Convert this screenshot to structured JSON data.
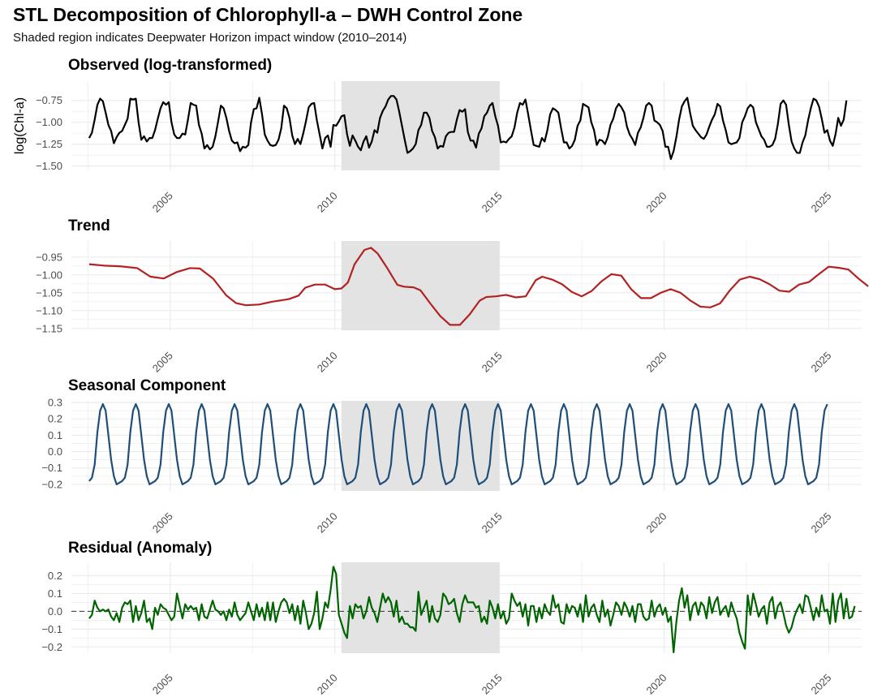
{
  "title": "STL Decomposition of Chlorophyll-a – DWH Control Zone",
  "subtitle": "Shaded region indicates Deepwater Horizon impact window (2010–2014)",
  "colors": {
    "observed": "#000000",
    "trend": "#b22222",
    "seasonal": "#1f4e79",
    "residual": "#006400",
    "shade": "#e3e3e3",
    "grid": "#ebebeb"
  },
  "chart_data": [
    {
      "type": "line",
      "panel": "observed",
      "title": "Observed (log-transformed)",
      "ylabel": "log(Chl-a)",
      "xlim": [
        2002.0,
        2026.0
      ],
      "xticks": [
        2005,
        2010,
        2015,
        2020,
        2025
      ],
      "ylim": [
        -1.55,
        -0.53
      ],
      "yticks": [
        -1.5,
        -1.25,
        -1.0,
        -0.75
      ],
      "ytick_labels": [
        "-1.50",
        "-1.25",
        "-1.00",
        "-0.75"
      ],
      "shade": [
        2010.2,
        2015.0
      ],
      "x_start": 2002.54,
      "x_step": 0.08333,
      "values": [
        -1.18,
        -1.12,
        -0.97,
        -0.8,
        -0.73,
        -0.76,
        -0.89,
        -1.03,
        -1.1,
        -1.24,
        -1.17,
        -1.12,
        -1.1,
        -1.03,
        -0.96,
        -0.73,
        -0.74,
        -0.73,
        -1.0,
        -1.2,
        -1.16,
        -1.22,
        -1.18,
        -1.18,
        -1.09,
        -0.96,
        -0.84,
        -0.77,
        -0.8,
        -0.77,
        -1.0,
        -1.14,
        -1.18,
        -1.18,
        -1.13,
        -1.14,
        -0.97,
        -0.78,
        -0.8,
        -0.81,
        -1.03,
        -1.13,
        -1.3,
        -1.26,
        -1.31,
        -1.28,
        -1.16,
        -0.99,
        -0.81,
        -0.84,
        -0.95,
        -1.1,
        -1.21,
        -1.24,
        -1.23,
        -1.33,
        -1.28,
        -1.29,
        -1.26,
        -1.0,
        -0.85,
        -0.84,
        -0.72,
        -0.91,
        -1.14,
        -1.21,
        -1.26,
        -1.27,
        -1.26,
        -1.2,
        -1.07,
        -0.81,
        -0.84,
        -0.95,
        -1.15,
        -1.25,
        -1.19,
        -1.25,
        -1.13,
        -0.99,
        -0.83,
        -0.79,
        -0.78,
        -0.98,
        -1.14,
        -1.3,
        -1.18,
        -1.15,
        -1.28,
        -1.03,
        -1.04,
        -0.99,
        -0.93,
        -0.92,
        -1.14,
        -1.27,
        -1.15,
        -1.21,
        -1.28,
        -1.32,
        -1.22,
        -1.16,
        -1.29,
        -1.22,
        -1.09,
        -1.12,
        -0.95,
        -0.87,
        -0.82,
        -0.74,
        -0.7,
        -0.7,
        -0.74,
        -0.88,
        -1.04,
        -1.2,
        -1.35,
        -1.33,
        -1.3,
        -1.25,
        -1.09,
        -1.03,
        -0.89,
        -0.89,
        -0.95,
        -1.1,
        -1.17,
        -1.3,
        -1.27,
        -1.28,
        -1.16,
        -1.12,
        -1.11,
        -1.11,
        -0.97,
        -0.86,
        -0.88,
        -0.85,
        -1.11,
        -1.21,
        -1.21,
        -1.29,
        -1.13,
        -1.07,
        -0.93,
        -0.89,
        -0.81,
        -0.78,
        -0.93,
        -1.04,
        -1.23,
        -1.22,
        -1.23,
        -1.19,
        -1.16,
        -1.06,
        -0.89,
        -0.78,
        -0.8,
        -0.74,
        -0.91,
        -1.09,
        -1.26,
        -1.27,
        -1.28,
        -1.18,
        -1.22,
        -1.09,
        -0.91,
        -0.84,
        -0.86,
        -0.89,
        -1.07,
        -1.23,
        -1.23,
        -1.3,
        -1.27,
        -1.2,
        -1.04,
        -0.98,
        -0.79,
        -0.81,
        -0.83,
        -1.0,
        -1.09,
        -1.26,
        -1.2,
        -1.21,
        -1.25,
        -1.17,
        -1.03,
        -0.96,
        -0.84,
        -0.79,
        -0.83,
        -0.89,
        -1.05,
        -1.14,
        -1.19,
        -1.26,
        -1.12,
        -1.06,
        -0.95,
        -0.81,
        -0.78,
        -0.81,
        -0.98,
        -1.0,
        -1.03,
        -1.1,
        -1.28,
        -1.28,
        -1.42,
        -1.33,
        -1.17,
        -0.97,
        -0.82,
        -0.76,
        -0.72,
        -0.89,
        -1.04,
        -1.09,
        -1.13,
        -1.17,
        -1.19,
        -1.14,
        -1.05,
        -0.97,
        -0.91,
        -0.79,
        -0.82,
        -0.98,
        -1.09,
        -1.23,
        -1.25,
        -1.24,
        -1.23,
        -1.18,
        -1.0,
        -0.93,
        -0.84,
        -0.8,
        -0.83,
        -1.0,
        -1.08,
        -1.16,
        -1.2,
        -1.28,
        -1.28,
        -1.26,
        -1.19,
        -1.02,
        -0.79,
        -0.75,
        -0.8,
        -1.03,
        -1.22,
        -1.3,
        -1.35,
        -1.35,
        -1.23,
        -1.15,
        -0.98,
        -0.84,
        -0.73,
        -0.75,
        -0.82,
        -0.96,
        -1.12,
        -1.09,
        -1.21,
        -1.27,
        -1.14,
        -0.95,
        -1.04,
        -0.97,
        -0.75
      ]
    },
    {
      "type": "line",
      "panel": "trend",
      "title": "Trend",
      "xlim": [
        2002.0,
        2026.0
      ],
      "xticks": [
        2005,
        2010,
        2015,
        2020,
        2025
      ],
      "ylim": [
        -1.155,
        -0.905
      ],
      "yticks": [
        -1.15,
        -1.1,
        -1.05,
        -1.0,
        -0.95
      ],
      "ytick_labels": [
        "-1.15",
        "-1.10",
        "-1.05",
        "-1.00",
        "-0.95"
      ],
      "shade": [
        2010.2,
        2015.0
      ],
      "points": [
        [
          2002.54,
          -0.97
        ],
        [
          2003.0,
          -0.974
        ],
        [
          2003.5,
          -0.976
        ],
        [
          2004.0,
          -0.981
        ],
        [
          2004.4,
          -1.005
        ],
        [
          2004.8,
          -1.01
        ],
        [
          2005.2,
          -0.992
        ],
        [
          2005.6,
          -0.981
        ],
        [
          2005.9,
          -0.982
        ],
        [
          2006.3,
          -1.01
        ],
        [
          2006.7,
          -1.057
        ],
        [
          2007.0,
          -1.079
        ],
        [
          2007.3,
          -1.085
        ],
        [
          2007.7,
          -1.083
        ],
        [
          2008.1,
          -1.075
        ],
        [
          2008.6,
          -1.068
        ],
        [
          2008.9,
          -1.058
        ],
        [
          2009.1,
          -1.036
        ],
        [
          2009.4,
          -1.027
        ],
        [
          2009.7,
          -1.027
        ],
        [
          2010.0,
          -1.04
        ],
        [
          2010.2,
          -1.038
        ],
        [
          2010.4,
          -1.021
        ],
        [
          2010.6,
          -0.97
        ],
        [
          2010.9,
          -0.93
        ],
        [
          2011.1,
          -0.924
        ],
        [
          2011.3,
          -0.94
        ],
        [
          2011.6,
          -0.982
        ],
        [
          2011.9,
          -1.028
        ],
        [
          2012.1,
          -1.033
        ],
        [
          2012.4,
          -1.035
        ],
        [
          2012.6,
          -1.043
        ],
        [
          2012.9,
          -1.08
        ],
        [
          2013.2,
          -1.115
        ],
        [
          2013.5,
          -1.14
        ],
        [
          2013.8,
          -1.14
        ],
        [
          2014.1,
          -1.11
        ],
        [
          2014.4,
          -1.072
        ],
        [
          2014.6,
          -1.062
        ],
        [
          2014.9,
          -1.06
        ],
        [
          2015.2,
          -1.056
        ],
        [
          2015.5,
          -1.063
        ],
        [
          2015.8,
          -1.06
        ],
        [
          2016.1,
          -1.015
        ],
        [
          2016.3,
          -1.005
        ],
        [
          2016.6,
          -1.013
        ],
        [
          2016.9,
          -1.026
        ],
        [
          2017.2,
          -1.048
        ],
        [
          2017.5,
          -1.06
        ],
        [
          2017.8,
          -1.045
        ],
        [
          2018.1,
          -1.018
        ],
        [
          2018.4,
          -0.998
        ],
        [
          2018.7,
          -1.002
        ],
        [
          2019.0,
          -1.04
        ],
        [
          2019.3,
          -1.065
        ],
        [
          2019.6,
          -1.065
        ],
        [
          2019.9,
          -1.05
        ],
        [
          2020.2,
          -1.04
        ],
        [
          2020.5,
          -1.05
        ],
        [
          2020.8,
          -1.072
        ],
        [
          2021.1,
          -1.089
        ],
        [
          2021.4,
          -1.091
        ],
        [
          2021.7,
          -1.08
        ],
        [
          2022.0,
          -1.043
        ],
        [
          2022.3,
          -1.013
        ],
        [
          2022.6,
          -1.005
        ],
        [
          2022.9,
          -1.012
        ],
        [
          2023.2,
          -1.026
        ],
        [
          2023.5,
          -1.044
        ],
        [
          2023.8,
          -1.047
        ],
        [
          2024.1,
          -1.027
        ],
        [
          2024.4,
          -1.02
        ],
        [
          2024.7,
          -0.998
        ],
        [
          2025.0,
          -0.977
        ],
        [
          2025.3,
          -0.98
        ],
        [
          2025.6,
          -0.985
        ],
        [
          2025.9,
          -1.01
        ],
        [
          2026.2,
          -1.032
        ]
      ]
    },
    {
      "type": "line",
      "panel": "seasonal",
      "title": "Seasonal Component",
      "xlim": [
        2002.0,
        2026.0
      ],
      "xticks": [
        2005,
        2010,
        2015,
        2020,
        2025
      ],
      "ylim": [
        -0.24,
        0.31
      ],
      "yticks": [
        -0.2,
        -0.1,
        0.0,
        0.1,
        0.2,
        0.3
      ],
      "ytick_labels": [
        "-0.2",
        "-0.1",
        "0.0",
        "0.1",
        "0.2",
        "0.3"
      ],
      "shade": [
        2010.2,
        2015.0
      ],
      "x_start": 2002.54,
      "x_step": 0.08333,
      "cycle": [
        -0.18,
        -0.16,
        -0.08,
        0.12,
        0.25,
        0.29,
        0.25,
        0.1,
        -0.05,
        -0.15,
        -0.2,
        -0.19
      ],
      "n": 270
    },
    {
      "type": "line",
      "panel": "residual",
      "title": "Residual (Anomaly)",
      "xlim": [
        2002.0,
        2026.0
      ],
      "xticks": [
        2005,
        2010,
        2015,
        2020,
        2025
      ],
      "ylim": [
        -0.235,
        0.275
      ],
      "yticks": [
        -0.2,
        -0.1,
        0.0,
        0.1,
        0.2
      ],
      "ytick_labels": [
        "-0.2",
        "-0.1",
        "0.0",
        "0.1",
        "0.2"
      ],
      "shade": [
        2010.2,
        2015.0
      ],
      "reference_line": 0,
      "x_start": 2002.54,
      "x_step": 0.08333,
      "values": [
        -0.04,
        -0.02,
        0.06,
        0.02,
        0.0,
        0.01,
        0.0,
        0.01,
        -0.03,
        -0.05,
        -0.01,
        -0.06,
        0.02,
        0.05,
        0.04,
        0.06,
        -0.06,
        0.03,
        -0.05,
        -0.01,
        0.06,
        -0.06,
        -0.04,
        -0.1,
        0.02,
        -0.02,
        0.04,
        0.02,
        0.01,
        -0.02,
        -0.05,
        -0.03,
        0.1,
        0.03,
        -0.04,
        0.04,
        0.01,
        0.03,
        0.01,
        0.02,
        -0.05,
        0.04,
        -0.03,
        -0.04,
        0.01,
        0.06,
        0.01,
        0.0,
        -0.02,
        0.0,
        -0.05,
        0.01,
        -0.03,
        0.05,
        -0.02,
        -0.05,
        -0.03,
        -0.01,
        0.05,
        0.0,
        -0.05,
        0.04,
        -0.03,
        0.02,
        -0.05,
        0.05,
        -0.05,
        0.05,
        -0.06,
        0.0,
        0.05,
        0.07,
        0.05,
        -0.01,
        0.04,
        -0.05,
        0.03,
        -0.07,
        0.06,
        -0.01,
        -0.1,
        -0.07,
        -0.01,
        0.11,
        -0.1,
        -0.04,
        0.05,
        0.02,
        0.12,
        0.25,
        0.21,
        -0.02,
        -0.07,
        -0.12,
        -0.15,
        0.03,
        -0.04,
        0.04,
        0.02,
        0.03,
        -0.04,
        0.0,
        0.08,
        0.02,
        -0.01,
        -0.06,
        0.02,
        0.1,
        0.05,
        0.08,
        0.05,
        -0.03,
        0.06,
        -0.06,
        -0.03,
        -0.07,
        -0.07,
        -0.09,
        -0.09,
        -0.11,
        0.11,
        -0.02,
        0.02,
        0.06,
        -0.06,
        0.03,
        -0.04,
        -0.06,
        -0.02,
        0.1,
        0.08,
        0.04,
        0.05,
        0.07,
        -0.01,
        -0.06,
        0.04,
        0.09,
        0.05,
        0.05,
        0.05,
        0.02,
        0.03,
        -0.06,
        -0.03,
        -0.07,
        0.06,
        0.02,
        -0.04,
        0.04,
        -0.04,
        0.0,
        -0.07,
        -0.04,
        0.1,
        0.06,
        0.03,
        0.05,
        -0.03,
        0.04,
        -0.08,
        0.03,
        0.03,
        -0.06,
        0.02,
        -0.04,
        0.04,
        0.0,
        -0.02,
        0.09,
        0.02,
        0.04,
        -0.06,
        -0.07,
        0.04,
        -0.01,
        0.03,
        0.02,
        -0.03,
        0.04,
        -0.06,
        0.09,
        -0.03,
        0.02,
        0.04,
        -0.02,
        -0.06,
        0.06,
        -0.03,
        0.01,
        -0.08,
        -0.02,
        0.05,
        0.03,
        -0.02,
        0.05,
        0.02,
        -0.03,
        0.03,
        -0.06,
        0.04,
        0.04,
        -0.03,
        -0.05,
        -0.04,
        0.06,
        -0.03,
        0.02,
        0.04,
        -0.02,
        0.02,
        -0.06,
        -0.03,
        -0.23,
        -0.06,
        0.06,
        0.13,
        0.02,
        0.09,
        -0.05,
        0.03,
        0.05,
        -0.02,
        0.05,
        0.03,
        -0.04,
        0.08,
        -0.01,
        0.05,
        0.08,
        -0.02,
        0.01,
        0.03,
        -0.03,
        0.05,
        0.0,
        -0.04,
        -0.12,
        -0.17,
        -0.21,
        0.09,
        -0.02,
        0.1,
        0.04,
        -0.03,
        0.01,
        0.03,
        -0.07,
        0.05,
        0.08,
        -0.04,
        0.03,
        0.05,
        -0.01,
        -0.08,
        -0.12,
        -0.09,
        -0.03,
        0.01,
        0.04,
        -0.01,
        0.09,
        0.08,
        0.02,
        -0.05,
        0.02,
        -0.03,
        0.09,
        0.0,
        0.01,
        -0.07,
        0.1,
        -0.06,
        0.06,
        0.1,
        -0.04,
        0.07,
        -0.04,
        -0.03,
        0.03
      ]
    }
  ]
}
